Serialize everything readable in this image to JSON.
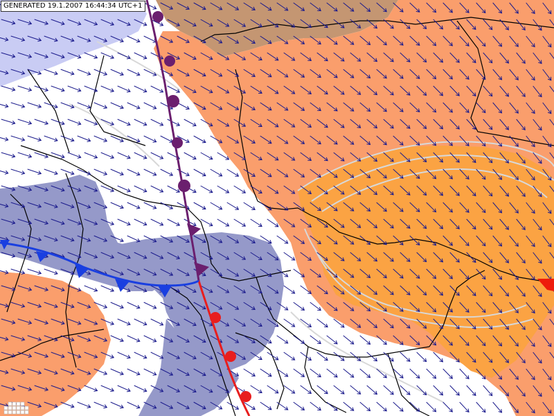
{
  "header": {
    "generated_label": "GENERATED 19.1.2007 16:44:34 UTC+1"
  },
  "colors": {
    "background": "#ffffff",
    "region_orange_light": "#fa9e6c",
    "region_orange_strong": "#fba343",
    "region_brown": "#c49672",
    "region_blue": "#9599c9",
    "region_blue_light": "#c9ccf4",
    "contour": "#d8d8d8",
    "border": "#000000",
    "wind_arrow": "#1a1a8c",
    "occluded_front": "#6b1f6e",
    "warm_front": "#e81e1e",
    "cold_front": "#1a3fe0"
  },
  "icons": {
    "legend": "legend-grid-icon",
    "wind_arrow": "wind-arrow-icon",
    "cold_front_marker": "cold-front-triangle-icon",
    "warm_front_marker": "warm-front-semicircle-icon",
    "occluded_marker": "occluded-front-icon"
  },
  "fronts": [
    {
      "type": "occluded"
    },
    {
      "type": "warm"
    },
    {
      "type": "cold"
    }
  ]
}
